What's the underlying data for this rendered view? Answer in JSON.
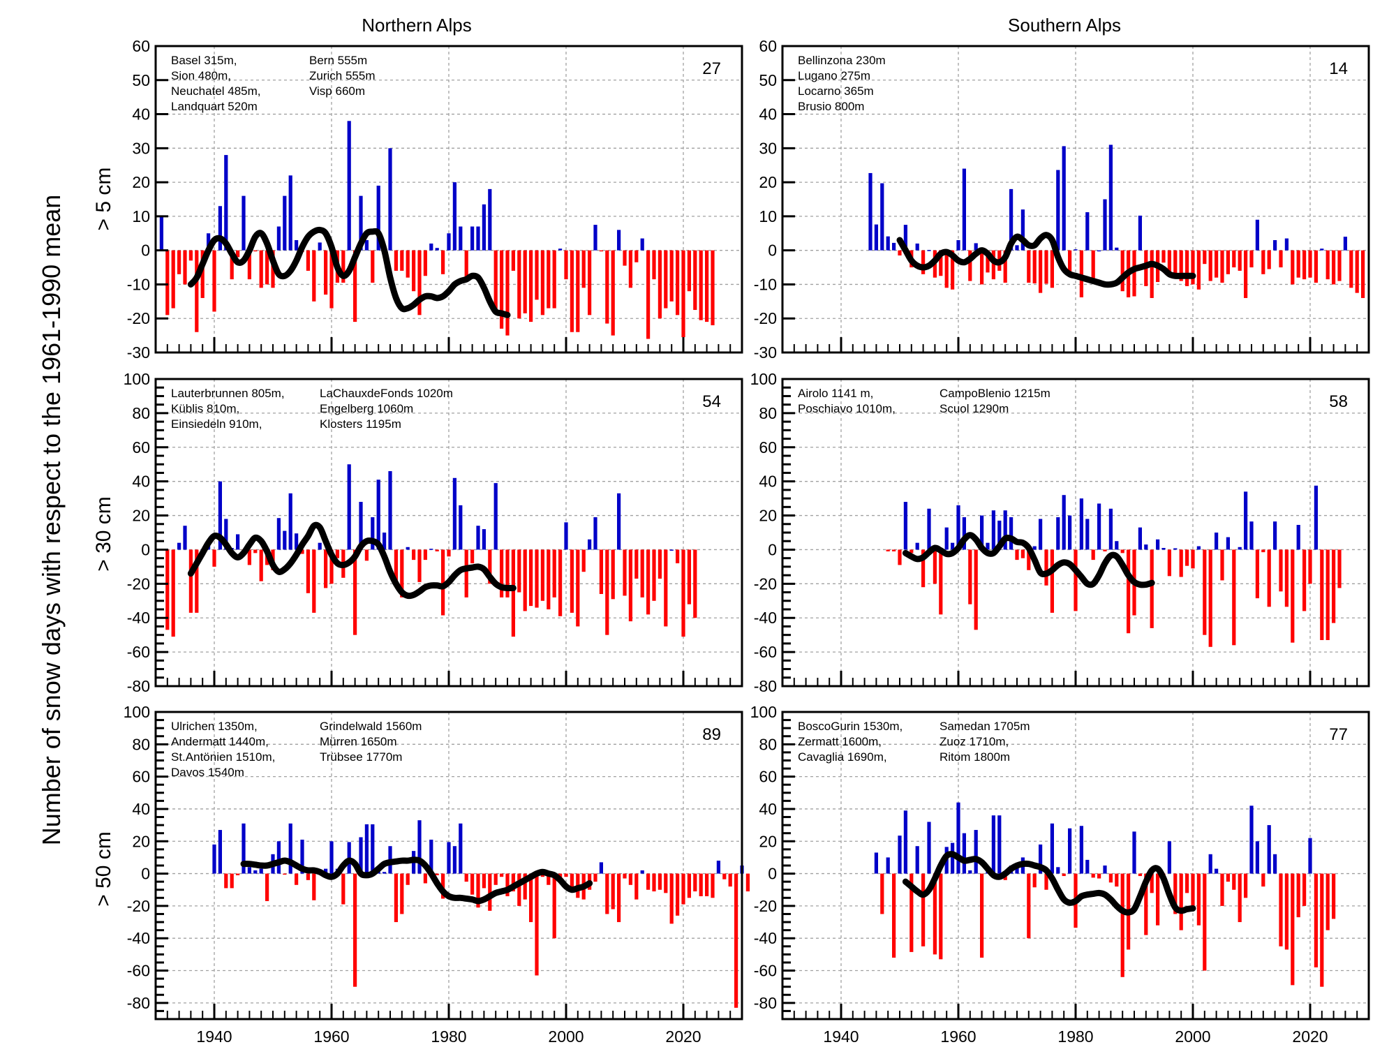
{
  "figure": {
    "ylabel": "Number of  snow days with respect to the 1961-1990 mean",
    "column_titles": [
      "Northern Alps",
      "Southern Alps"
    ],
    "row_labels": [
      "> 5 cm",
      "> 30 cm",
      "> 50 cm"
    ],
    "x_ticks": [
      1940,
      1960,
      1980,
      2000,
      2020
    ],
    "colors": {
      "positive": "#0000c8",
      "negative": "#ff0000",
      "smooth": "#000000",
      "grid": "#a0a0a0"
    }
  },
  "chart_data": [
    {
      "type": "bar",
      "panel": "northern-5cm",
      "title": "Northern Alps",
      "row_label": "> 5 cm",
      "xlim": [
        1930,
        2030
      ],
      "ylim": [
        -30,
        60
      ],
      "yticks": [
        -30,
        -20,
        -10,
        0,
        10,
        20,
        30,
        40,
        50,
        60
      ],
      "count": "27",
      "stations_col1": [
        "Basel 315m,",
        "Sion 480m,",
        "Neuchatel 485m,",
        "Landquart 520m"
      ],
      "stations_col2": [
        "Bern 555m",
        "Zurich 555m",
        "Visp 660m"
      ],
      "start_year": 1931,
      "values": [
        10,
        -19,
        -17,
        -7,
        -10,
        -3,
        -24,
        -14,
        5,
        -18,
        13,
        28,
        -8.5,
        -2,
        16,
        -8.5,
        -0.3,
        -11,
        -10,
        -11,
        7,
        16,
        22,
        3,
        -0.5,
        -6,
        -15,
        2.3,
        -13,
        -17,
        -9.5,
        -9.5,
        38,
        -21,
        16,
        3,
        -9.5,
        19,
        0.2,
        30,
        -6,
        -6,
        -8,
        -12,
        -19,
        -7.5,
        2,
        0.7,
        -7,
        5,
        20,
        7,
        -8.5,
        7,
        7,
        13.5,
        18,
        -18,
        -23,
        -25,
        -6,
        -20,
        -18.5,
        -21,
        -14.5,
        -19,
        -17,
        -17,
        0.5,
        -8.5,
        -24,
        -24,
        -11,
        -19,
        7.5,
        -0.3,
        -21.5,
        -25,
        6,
        -4.5,
        -11,
        -3.5,
        3.5,
        -26,
        -8.5,
        -20,
        -17,
        -15,
        -19,
        -25.5,
        -12,
        -17.5,
        -20.5,
        -21,
        -22
      ],
      "smooth_start_year": 1936,
      "smooth": [
        -10,
        -8,
        -4,
        0,
        3,
        3.5,
        2,
        -1,
        -3.5,
        -3,
        0,
        4,
        5,
        2,
        -3,
        -7,
        -7.5,
        -6,
        -3,
        1,
        4,
        5.5,
        6,
        5,
        1,
        -5,
        -7.5,
        -6,
        -2,
        2,
        5,
        5.5,
        5,
        0,
        -8,
        -14,
        -17,
        -17,
        -16,
        -14.5,
        -13.5,
        -13.5,
        -14,
        -13.5,
        -12,
        -10,
        -9,
        -8.5,
        -7.5,
        -8,
        -11,
        -15,
        -18,
        -18.5,
        -19
      ]
    },
    {
      "type": "bar",
      "panel": "southern-5cm",
      "title": "Southern Alps",
      "row_label": "> 5 cm",
      "xlim": [
        1930,
        2030
      ],
      "ylim": [
        -30,
        60
      ],
      "yticks": [
        -30,
        -20,
        -10,
        0,
        10,
        20,
        30,
        40,
        50,
        60
      ],
      "count": "14",
      "stations_col1": [
        "Bellinzona 230m",
        "Lugano 275m",
        "Locarno 365m",
        "Brusio 800m"
      ],
      "stations_col2": [],
      "start_year": 1945,
      "values": [
        22.7,
        7.6,
        19.7,
        4.1,
        2.2,
        -1.5,
        7.5,
        -5,
        2,
        -7,
        0.1,
        -8,
        -7.5,
        -11,
        -11.5,
        3,
        24,
        -9,
        2.1,
        -10,
        -6.5,
        -8.5,
        -6,
        -9.5,
        18,
        1.5,
        12,
        -9.5,
        -9.7,
        -12.5,
        -9.8,
        -11,
        23.6,
        30.6,
        -7.5,
        0.3,
        -13.8,
        11.2,
        -9.5,
        0,
        15,
        31,
        0.8,
        -12,
        -13.8,
        -13.5,
        10.2,
        -10.5,
        -14,
        -9.3,
        -3.6,
        -7,
        -8,
        -9,
        -10.5,
        -10,
        -11.5,
        -4,
        -9,
        -8,
        -9.5,
        -7,
        -5,
        -6,
        -14,
        -5,
        9,
        -7,
        -5.5,
        3,
        -5,
        3.5,
        -10,
        -8,
        -8.5,
        -8,
        -9.5,
        0.5,
        -8.5,
        -10,
        -9,
        4,
        -11,
        -12.5,
        -14
      ],
      "smooth_start_year": 1950,
      "smooth": [
        3,
        0,
        -3,
        -4.5,
        -5,
        -4.5,
        -3,
        -1,
        -0.5,
        -1.5,
        -3,
        -3.5,
        -2.5,
        -1,
        0,
        -1,
        -3,
        -3.5,
        -2,
        2,
        4,
        3,
        1.5,
        1.5,
        3.5,
        4.5,
        3,
        -2,
        -5.5,
        -7,
        -7.5,
        -8,
        -8.5,
        -9,
        -9.5,
        -10,
        -10,
        -9.5,
        -8,
        -6.5,
        -5.5,
        -5,
        -4.5,
        -4,
        -4.5,
        -5.5,
        -7,
        -7.5,
        -7.5,
        -7.5,
        -7.5
      ]
    },
    {
      "type": "bar",
      "panel": "northern-30cm",
      "title": "Northern Alps",
      "row_label": "> 30 cm",
      "xlim": [
        1930,
        2030
      ],
      "ylim": [
        -80,
        100
      ],
      "yticks": [
        -80,
        -60,
        -40,
        -20,
        0,
        20,
        40,
        60,
        80,
        100
      ],
      "count": "54",
      "stations_col1": [
        "Lauterbrunnen 805m,",
        "Küblis 810m,",
        "Einsiedeln 910m,"
      ],
      "stations_col2": [
        "LaChauxdeFonds 1020m",
        "Engelberg 1060m",
        "Klosters 1195m"
      ],
      "start_year": 1932,
      "values": [
        -47,
        -51,
        4,
        14,
        -37,
        -37,
        0,
        5,
        -10,
        40,
        18,
        1,
        9,
        -2,
        -9,
        -2,
        -18.5,
        -9,
        -12,
        18.5,
        11,
        33,
        9.5,
        -2.5,
        -25.5,
        -37,
        4,
        -22.5,
        -20,
        -5,
        -16.5,
        50,
        -50,
        28,
        -6.5,
        19,
        41,
        10,
        46,
        -19,
        -28,
        1.5,
        -6,
        -19,
        -6,
        0.5,
        -1,
        -38.5,
        -4,
        42,
        26,
        -28,
        -8,
        14,
        12,
        -20,
        39,
        -28,
        -28,
        -51,
        -25,
        -36,
        -33,
        -34,
        -30,
        -35,
        -28,
        -39,
        16,
        -37,
        -45,
        -13,
        6,
        19,
        -26,
        -50,
        -29,
        33,
        -27,
        -42,
        -17,
        -28,
        -38,
        -30,
        -17,
        -45,
        0,
        -8,
        -51,
        -32,
        -40
      ],
      "smooth_start_year": 1936,
      "smooth": [
        -14,
        -8,
        -2,
        4,
        8,
        7,
        3,
        -2,
        -4.5,
        -2,
        3,
        7,
        5,
        -1,
        -9,
        -13,
        -11.5,
        -8,
        -3,
        3,
        8,
        14,
        13,
        5,
        -3,
        -8,
        -9,
        -7.5,
        -4,
        2,
        5,
        5,
        3,
        -4,
        -13,
        -20,
        -25,
        -27,
        -26.5,
        -24.5,
        -22,
        -21,
        -21,
        -21.5,
        -19,
        -15,
        -12,
        -11,
        -10.5,
        -10,
        -11.5,
        -16,
        -20,
        -22,
        -22.5,
        -22.5
      ]
    },
    {
      "type": "bar",
      "panel": "southern-30cm",
      "title": "Southern Alps",
      "row_label": "> 30 cm",
      "xlim": [
        1930,
        2030
      ],
      "ylim": [
        -80,
        100
      ],
      "yticks": [
        -80,
        -60,
        -40,
        -20,
        0,
        20,
        40,
        60,
        80,
        100
      ],
      "count": "58",
      "stations_col1": [
        "Airolo 1141 m,",
        "Poschiavo 1010m,"
      ],
      "stations_col2": [
        "CampoBlenio 1215m",
        "Scuol 1290m"
      ],
      "start_year": 1948,
      "values": [
        -1,
        -1,
        -9,
        28,
        -2,
        4,
        -22,
        24,
        -20,
        -38,
        13,
        4,
        26,
        19,
        -32,
        -47,
        20,
        4,
        23,
        17,
        23,
        19,
        -6,
        -5,
        -12,
        2,
        18,
        -21,
        -37,
        19,
        32,
        20,
        -36,
        30,
        18,
        -6,
        27,
        -1,
        24,
        5,
        -2,
        -49,
        -38.5,
        13,
        3,
        -46,
        6,
        1,
        -15.5,
        0.8,
        -16,
        -9.5,
        -11,
        2,
        -50,
        -57,
        10,
        -18,
        7.3,
        -56,
        1.5,
        34,
        16.5,
        -28.5,
        -1.5,
        -33.5,
        16.5,
        -24.5,
        -33.5,
        -54.5,
        14.5,
        -36,
        -20,
        37.5,
        -53,
        -53,
        -43,
        -22.5
      ],
      "smooth_start_year": 1951,
      "smooth": [
        -2,
        -4,
        -5.5,
        -4.5,
        -1.5,
        1,
        -0.5,
        -2.5,
        -2,
        1,
        6,
        8.5,
        6,
        1,
        -2,
        -2,
        2,
        6.5,
        6.5,
        4.5,
        4,
        1,
        -6,
        -13.5,
        -14,
        -12,
        -9,
        -7.5,
        -8.5,
        -12,
        -16,
        -20,
        -20,
        -15,
        -8,
        -3.5,
        -4,
        -9,
        -15,
        -19,
        -20.5,
        -20.5,
        -19.5
      ]
    },
    {
      "type": "bar",
      "panel": "northern-50cm",
      "title": "Northern Alps",
      "row_label": "> 50 cm",
      "xlim": [
        1930,
        2030
      ],
      "ylim": [
        -90,
        100
      ],
      "yticks": [
        -80,
        -60,
        -40,
        -20,
        0,
        20,
        40,
        60,
        80,
        100
      ],
      "count": "89",
      "stations_col1": [
        "Ulrichen 1350m,",
        "Andermatt 1440m,",
        "St.Antönien 1510m,",
        "Davos 1540m"
      ],
      "stations_col2": [
        "Grindelwald 1560m",
        "Mürren 1650m",
        "Trübsee 1770m"
      ],
      "start_year": 1940,
      "values": [
        18,
        27,
        -9,
        -9,
        -1,
        31,
        4,
        2,
        3,
        -17,
        12,
        20,
        -0.3,
        31,
        -7,
        21,
        -4,
        -16.5,
        0,
        3,
        20,
        3,
        -19,
        19.5,
        -70,
        22.5,
        30.5,
        30.5,
        2,
        1,
        17,
        -30,
        -25,
        -7,
        14,
        33,
        -6,
        21,
        -1,
        -15.5,
        19.5,
        17,
        31,
        -5,
        -13,
        -21,
        -9,
        -23,
        -7,
        -2,
        -14,
        -11,
        -20,
        -16,
        -30,
        -63,
        -2,
        -7,
        -40,
        -4,
        -2,
        -9,
        -15,
        -16,
        -10,
        -5,
        7,
        -25,
        -22,
        -30,
        -3,
        -7,
        -16,
        2,
        -10,
        -11,
        -10,
        -12,
        -31,
        -26,
        -19,
        -15,
        -11,
        -14,
        -14,
        -15,
        8,
        -3.5,
        -8,
        -83,
        5,
        -11
      ],
      "smooth_start_year": 1945,
      "smooth": [
        6,
        6,
        5.5,
        5,
        5,
        6,
        7,
        8,
        7,
        5,
        3,
        2,
        2,
        1,
        -1,
        -2,
        0,
        5,
        8,
        6,
        0,
        -1,
        0,
        3,
        6,
        7,
        7.5,
        8,
        8,
        8.5,
        8,
        5,
        0,
        -6,
        -11,
        -14,
        -15,
        -15,
        -15.5,
        -16,
        -17,
        -16,
        -14,
        -12,
        -11,
        -10,
        -8,
        -6,
        -4,
        -2,
        0,
        1,
        0,
        -1,
        -4,
        -8,
        -10,
        -9,
        -8,
        -6
      ]
    },
    {
      "type": "bar",
      "panel": "southern-50cm",
      "title": "Southern Alps",
      "row_label": "> 50 cm",
      "xlim": [
        1930,
        2030
      ],
      "ylim": [
        -90,
        100
      ],
      "yticks": [
        -80,
        -60,
        -40,
        -20,
        0,
        20,
        40,
        60,
        80,
        100
      ],
      "count": "77",
      "stations_col1": [
        "BoscoGurin 1530m,",
        "Zermatt 1600m,",
        "Cavaglia 1690m,"
      ],
      "stations_col2": [
        "Samedan 1705m",
        "Zuoz 1710m,",
        "Ritom 1800m"
      ],
      "start_year": 1946,
      "values": [
        13,
        -25,
        10,
        -52,
        23.5,
        39,
        -48.5,
        17,
        -45,
        32,
        -50,
        -53,
        16.5,
        19,
        44,
        25,
        2,
        27,
        -52,
        1.5,
        36,
        36,
        -4,
        5,
        4,
        10,
        -40,
        -8.5,
        18,
        -10,
        31,
        4,
        -1.5,
        28,
        -33.5,
        29.5,
        8.5,
        -2.5,
        -3,
        5,
        -5.5,
        -8,
        -64,
        -47,
        26,
        -1.5,
        -38,
        -12,
        -32,
        -6,
        20,
        -25,
        -35,
        -12,
        -20,
        -32,
        -60,
        12,
        3,
        -20,
        -5,
        -10,
        -30,
        -15,
        42,
        20,
        -8,
        30,
        12,
        -45,
        -47,
        -69,
        -27,
        -20,
        22,
        -58,
        -70,
        -35,
        -28
      ],
      "smooth_start_year": 1951,
      "smooth": [
        -5,
        -8,
        -11,
        -13,
        -10,
        -3,
        5,
        11,
        12,
        10,
        8,
        8.5,
        9,
        7,
        3,
        -1,
        -2,
        0,
        3,
        5,
        6,
        6,
        5,
        4,
        2,
        -3,
        -10,
        -16,
        -18,
        -17,
        -14,
        -13,
        -12.5,
        -12,
        -13,
        -16,
        -20,
        -23,
        -24,
        -22,
        -14,
        -5,
        2,
        3,
        -3,
        -13,
        -21,
        -23,
        -22,
        -21.5
      ]
    }
  ]
}
